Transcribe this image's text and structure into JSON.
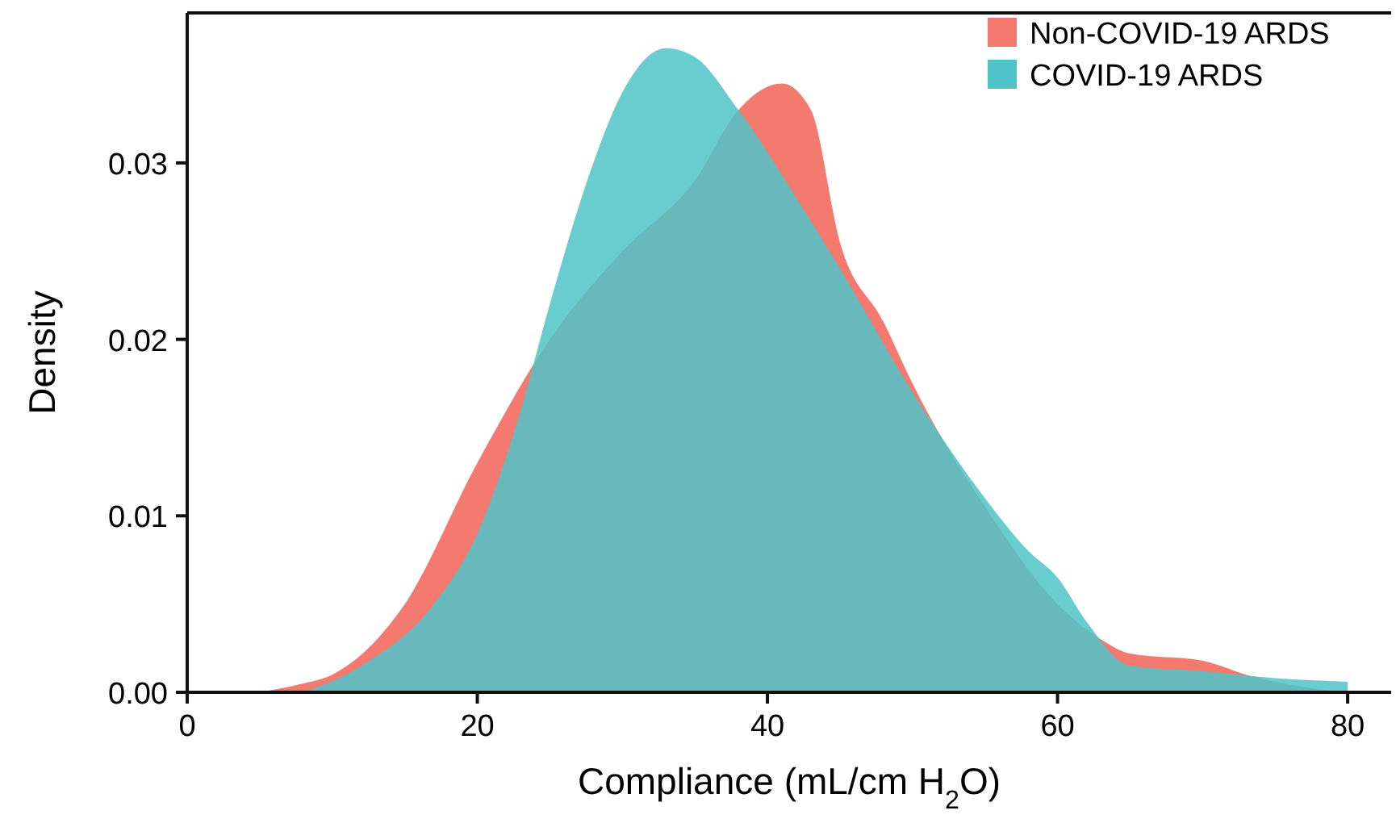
{
  "chart_data": {
    "type": "area",
    "xlabel": "Compliance (mL/cm H$_{2}$O)",
    "ylabel": "Density",
    "xlim": [
      0,
      83
    ],
    "ylim": [
      0,
      0.0385
    ],
    "xticks": [
      0,
      20,
      40,
      60,
      80
    ],
    "yticks": [
      {
        "value": 0,
        "label": "0.00"
      },
      {
        "value": 0.01,
        "label": "0.01"
      },
      {
        "value": 0.02,
        "label": "0.02"
      },
      {
        "value": 0.03,
        "label": "0.03"
      }
    ],
    "legend": "top right",
    "grid": false,
    "series": [
      {
        "name": "Non-COVID-19 ARDS",
        "color": "#f47a70",
        "x": [
          5,
          8,
          10,
          15,
          20,
          25,
          30,
          35,
          38,
          41,
          43,
          45,
          48,
          50,
          55,
          60,
          63,
          65,
          70,
          73,
          77,
          80
        ],
        "values": [
          0,
          0.0005,
          0.001,
          0.005,
          0.013,
          0.02,
          0.025,
          0.029,
          0.033,
          0.0345,
          0.033,
          0.0255,
          0.021,
          0.0175,
          0.0105,
          0.005,
          0.003,
          0.0022,
          0.0018,
          0.001,
          0.0003,
          0
        ]
      },
      {
        "name": "COVID-19 ARDS",
        "color": "#4fc4c8",
        "x": [
          8,
          12,
          17,
          20,
          23,
          25,
          28,
          30,
          33,
          35,
          38,
          42,
          45,
          50,
          55,
          58,
          60,
          62,
          65,
          70,
          75,
          80
        ],
        "values": [
          0,
          0.0015,
          0.005,
          0.009,
          0.016,
          0.022,
          0.03,
          0.034,
          0.0365,
          0.036,
          0.033,
          0.028,
          0.024,
          0.017,
          0.011,
          0.008,
          0.0065,
          0.004,
          0.0015,
          0.0012,
          0.0008,
          0.0006
        ]
      }
    ]
  }
}
